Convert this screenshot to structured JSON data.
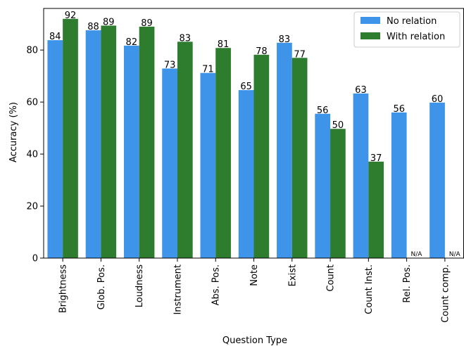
{
  "chart_data": {
    "type": "bar",
    "categories": [
      "Brightness",
      "Glob. Pos.",
      "Loudness",
      "Instrument",
      "Abs. Pos.",
      "Note",
      "Exist",
      "Count",
      "Count Inst.",
      "Rel. Pos.",
      "Count comp."
    ],
    "series": [
      {
        "name": "No relation",
        "color": "#3d94e8",
        "values": [
          83.8,
          87.6,
          81.7,
          72.9,
          71.2,
          64.6,
          82.8,
          55.5,
          63.3,
          56.0,
          59.8
        ],
        "labels": [
          "84",
          "88",
          "82",
          "73",
          "71",
          "65",
          "83",
          "56",
          "63",
          "56",
          "60"
        ]
      },
      {
        "name": "With relation",
        "color": "#2e7d2e",
        "values": [
          92.0,
          89.4,
          89.0,
          83.2,
          80.8,
          78.2,
          77.0,
          49.7,
          37.1,
          null,
          null
        ],
        "labels": [
          "92",
          "89",
          "89",
          "83",
          "81",
          "78",
          "77",
          "50",
          "37",
          "N/A",
          "N/A"
        ]
      }
    ],
    "xlabel": "Question Type",
    "ylabel": "Accuracy (%)",
    "ylim": [
      0,
      96
    ],
    "yticks": [
      0,
      20,
      40,
      60,
      80
    ],
    "grid": false,
    "legend_position": "top-right"
  }
}
